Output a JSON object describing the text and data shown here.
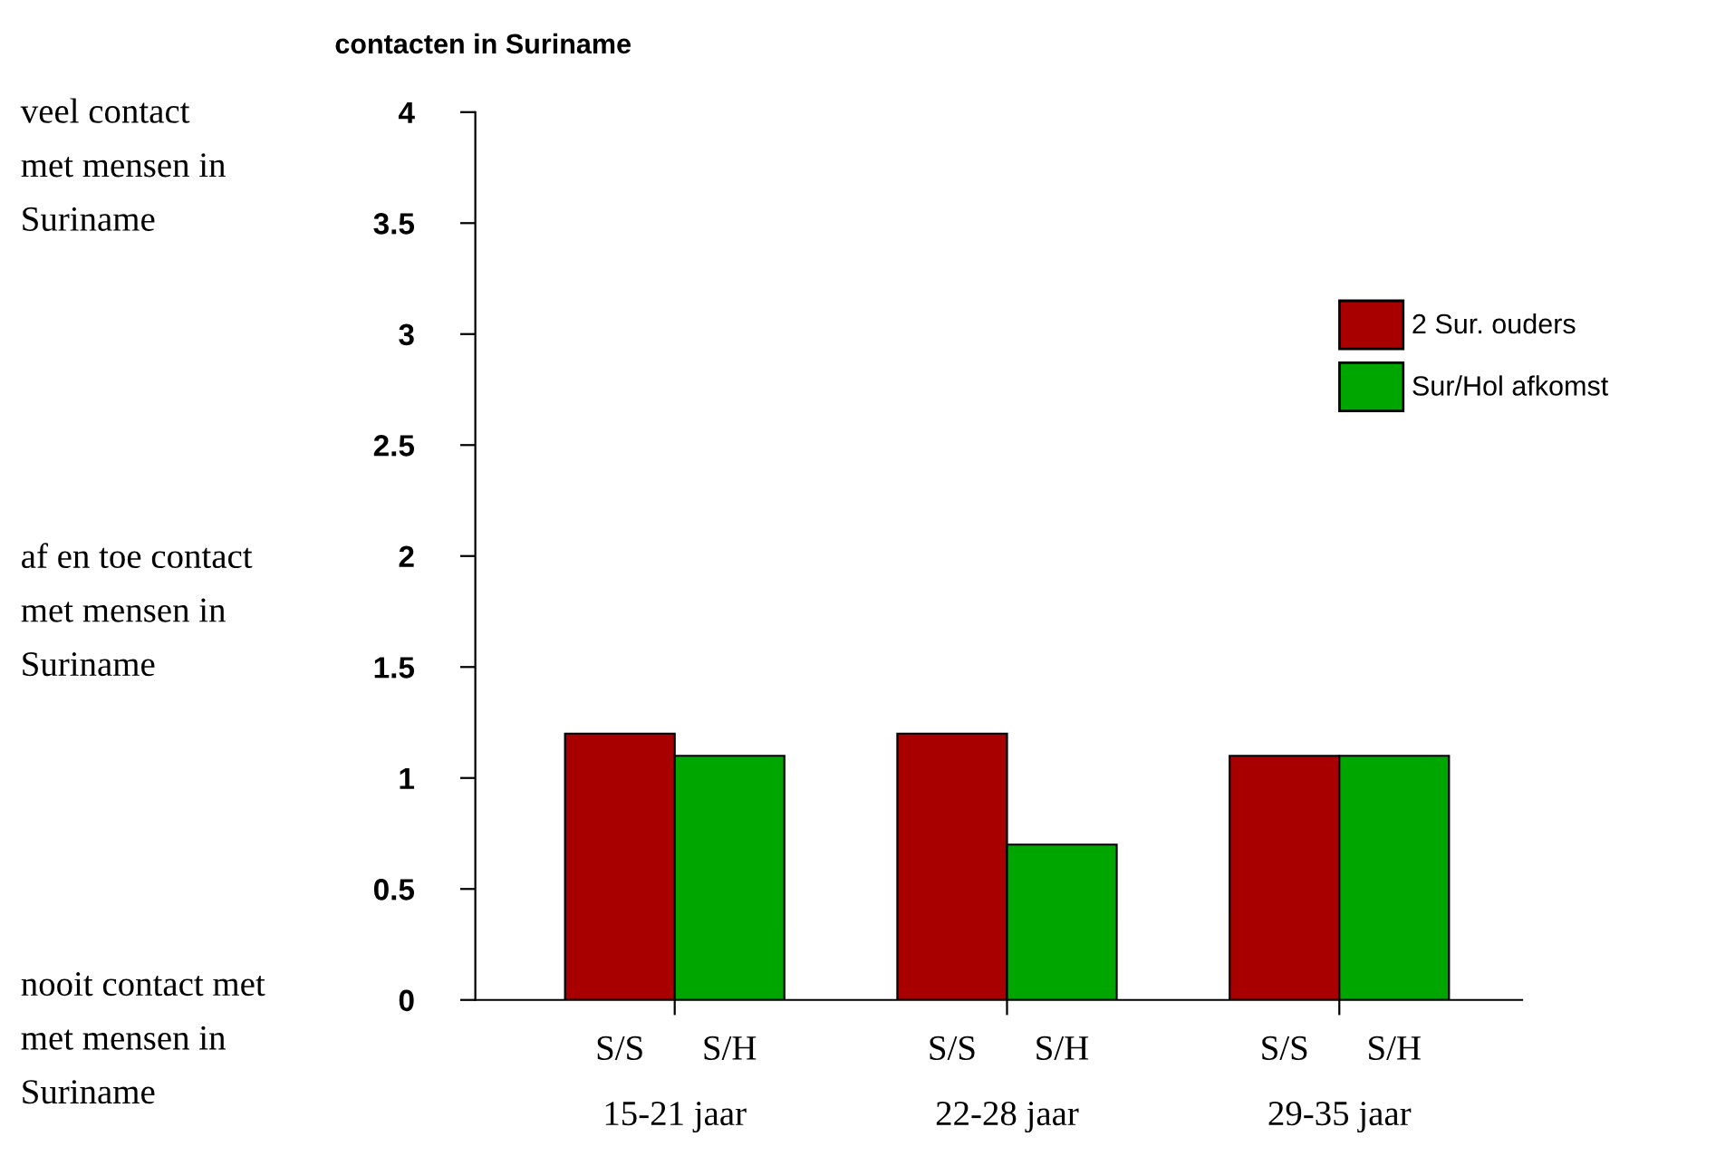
{
  "chart_data": {
    "type": "bar",
    "title": "contacten in Suriname",
    "categories": [
      "15-21 jaar",
      "22-28 jaar",
      "29-35 jaar"
    ],
    "series": [
      {
        "name": "2 Sur. ouders",
        "color": "#a80000",
        "values": [
          1.2,
          1.2,
          1.1
        ]
      },
      {
        "name": "Sur/Hol afkomst",
        "color": "#00a600",
        "values": [
          1.1,
          0.7,
          1.1
        ]
      }
    ],
    "ylim": [
      0,
      4
    ],
    "yticks": [
      0,
      0.5,
      1,
      1.5,
      2,
      2.5,
      3,
      3.5,
      4
    ],
    "grid": false,
    "legend": "right",
    "annotations": [
      "veel contact\nmet mensen in\nSuriname",
      "af en toe contact\nmet mensen in\nSuriname",
      "nooit contact met\nmet mensen in\nSuriname",
      "S/S",
      "S/H",
      "S/S",
      "S/H",
      "S/S",
      "S/H"
    ]
  }
}
